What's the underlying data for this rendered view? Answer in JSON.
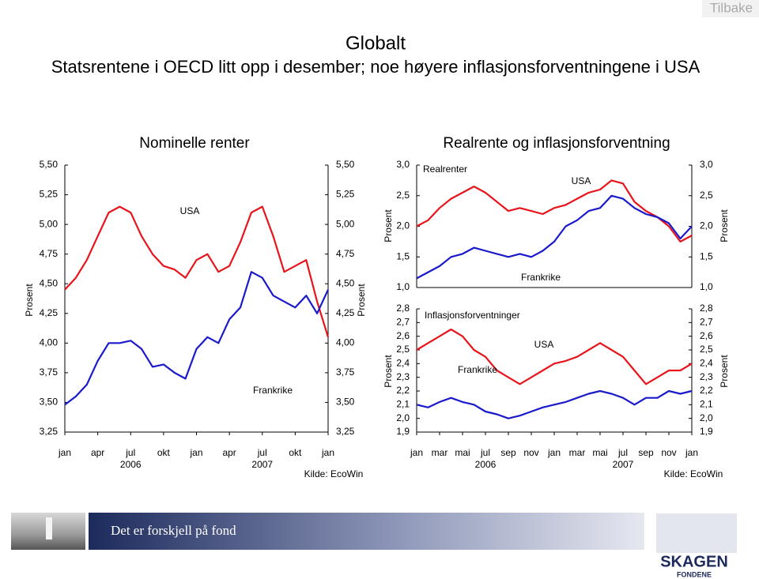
{
  "header": {
    "link": "Tilbake",
    "title": "Globalt",
    "subtitle": "Statsrentene i OECD litt opp i desember; noe høyere inflasjonsforventningene i USA"
  },
  "group_title": "Realrente og inflasjonsforventning",
  "chart_data": [
    {
      "type": "line",
      "title": "Nominelle renter",
      "ylabel": "Prosent",
      "source": "Kilde: EcoWin",
      "x": [
        0,
        1,
        2,
        3,
        4,
        5,
        6,
        7,
        8,
        9,
        10,
        11,
        12,
        13,
        14,
        15,
        16,
        17,
        18,
        19,
        20,
        21,
        22,
        23,
        24
      ],
      "xlim": [
        0,
        24
      ],
      "xticks": [
        {
          "value": 0,
          "label": "jan"
        },
        {
          "value": 3,
          "label": "apr"
        },
        {
          "value": 6,
          "label": "jul"
        },
        {
          "value": 9,
          "label": "okt"
        },
        {
          "value": 12,
          "label": "jan"
        },
        {
          "value": 15,
          "label": "apr"
        },
        {
          "value": 18,
          "label": "jul"
        },
        {
          "value": 21,
          "label": "okt"
        },
        {
          "value": 24,
          "label": "jan"
        }
      ],
      "year_labels": [
        {
          "value": 6,
          "label": "2006"
        },
        {
          "value": 18,
          "label": "2007"
        }
      ],
      "ylim": [
        3.25,
        5.5
      ],
      "yticks": [
        {
          "value": 3.25,
          "label": "3,25"
        },
        {
          "value": 3.5,
          "label": "3,50"
        },
        {
          "value": 3.75,
          "label": "3,75"
        },
        {
          "value": 4,
          "label": "4,00"
        },
        {
          "value": 4.25,
          "label": "4,25"
        },
        {
          "value": 4.5,
          "label": "4,50"
        },
        {
          "value": 4.75,
          "label": "4,75"
        },
        {
          "value": 5,
          "label": "5,00"
        },
        {
          "value": 5.25,
          "label": "5,25"
        },
        {
          "value": 5.5,
          "label": "5,50"
        }
      ],
      "series": [
        {
          "name": "USA",
          "color": "#e8141b",
          "values": [
            4.45,
            4.55,
            4.7,
            4.9,
            5.1,
            5.15,
            5.1,
            4.9,
            4.75,
            4.65,
            4.62,
            4.55,
            4.7,
            4.75,
            4.6,
            4.65,
            4.85,
            5.1,
            5.15,
            4.9,
            4.6,
            4.65,
            4.7,
            4.35,
            4.05
          ]
        },
        {
          "name": "Frankrike",
          "color": "#1a1acc",
          "values": [
            3.48,
            3.55,
            3.65,
            3.85,
            4.0,
            4.0,
            4.02,
            3.95,
            3.8,
            3.82,
            3.75,
            3.7,
            3.95,
            4.05,
            4.0,
            4.2,
            4.3,
            4.6,
            4.55,
            4.4,
            4.35,
            4.3,
            4.4,
            4.25,
            4.45
          ]
        }
      ]
    },
    {
      "type": "line",
      "title": "Realrenter",
      "ylabel": "Prosent",
      "x": [
        0,
        1,
        2,
        3,
        4,
        5,
        6,
        7,
        8,
        9,
        10,
        11,
        12,
        13,
        14,
        15,
        16,
        17,
        18,
        19,
        20,
        21,
        22,
        23,
        24
      ],
      "xlim": [
        0,
        24
      ],
      "ylim": [
        1.0,
        3.0
      ],
      "yticks": [
        {
          "value": 1,
          "label": "1,0"
        },
        {
          "value": 1.5,
          "label": "1,5"
        },
        {
          "value": 2,
          "label": "2,0"
        },
        {
          "value": 2.5,
          "label": "2,5"
        },
        {
          "value": 3,
          "label": "3,0"
        }
      ],
      "series": [
        {
          "name": "USA",
          "color": "#e8141b",
          "values": [
            2.0,
            2.1,
            2.3,
            2.45,
            2.55,
            2.65,
            2.55,
            2.4,
            2.25,
            2.3,
            2.25,
            2.2,
            2.3,
            2.35,
            2.45,
            2.55,
            2.6,
            2.75,
            2.7,
            2.4,
            2.25,
            2.15,
            2.0,
            1.75,
            1.85
          ]
        },
        {
          "name": "Frankrike",
          "color": "#1a1acc",
          "values": [
            1.15,
            1.25,
            1.35,
            1.5,
            1.55,
            1.65,
            1.6,
            1.55,
            1.5,
            1.55,
            1.5,
            1.6,
            1.75,
            2.0,
            2.1,
            2.25,
            2.3,
            2.5,
            2.45,
            2.3,
            2.2,
            2.15,
            2.05,
            1.8,
            2.0
          ]
        }
      ]
    },
    {
      "type": "line",
      "title": "Inflasjonsforventninger",
      "ylabel": "Prosent",
      "source": "Kilde: EcoWin",
      "x": [
        0,
        1,
        2,
        3,
        4,
        5,
        6,
        7,
        8,
        9,
        10,
        11,
        12,
        13,
        14,
        15,
        16,
        17,
        18,
        19,
        20,
        21,
        22,
        23,
        24
      ],
      "xlim": [
        0,
        24
      ],
      "xticks": [
        {
          "value": 0,
          "label": "jan"
        },
        {
          "value": 2,
          "label": "mar"
        },
        {
          "value": 4,
          "label": "mai"
        },
        {
          "value": 6,
          "label": "jul"
        },
        {
          "value": 8,
          "label": "sep"
        },
        {
          "value": 10,
          "label": "nov"
        },
        {
          "value": 12,
          "label": "jan"
        },
        {
          "value": 14,
          "label": "mar"
        },
        {
          "value": 16,
          "label": "mai"
        },
        {
          "value": 18,
          "label": "jul"
        },
        {
          "value": 20,
          "label": "sep"
        },
        {
          "value": 22,
          "label": "nov"
        },
        {
          "value": 24,
          "label": "jan"
        }
      ],
      "year_labels": [
        {
          "value": 6,
          "label": "2006"
        },
        {
          "value": 18,
          "label": "2007"
        }
      ],
      "ylim": [
        1.9,
        2.8
      ],
      "yticks": [
        {
          "value": 1.9,
          "label": "1,9"
        },
        {
          "value": 2.0,
          "label": "2,0"
        },
        {
          "value": 2.1,
          "label": "2,1"
        },
        {
          "value": 2.2,
          "label": "2,2"
        },
        {
          "value": 2.3,
          "label": "2,3"
        },
        {
          "value": 2.4,
          "label": "2,4"
        },
        {
          "value": 2.5,
          "label": "2,5"
        },
        {
          "value": 2.6,
          "label": "2,6"
        },
        {
          "value": 2.7,
          "label": "2,7"
        },
        {
          "value": 2.8,
          "label": "2,8"
        }
      ],
      "series": [
        {
          "name": "USA",
          "color": "#e8141b",
          "values": [
            2.5,
            2.55,
            2.6,
            2.65,
            2.6,
            2.5,
            2.45,
            2.35,
            2.3,
            2.25,
            2.3,
            2.35,
            2.4,
            2.42,
            2.45,
            2.5,
            2.55,
            2.5,
            2.45,
            2.35,
            2.25,
            2.3,
            2.35,
            2.35,
            2.4
          ]
        },
        {
          "name": "Frankrike",
          "color": "#1a1acc",
          "values": [
            2.1,
            2.08,
            2.12,
            2.15,
            2.12,
            2.1,
            2.05,
            2.03,
            2.0,
            2.02,
            2.05,
            2.08,
            2.1,
            2.12,
            2.15,
            2.18,
            2.2,
            2.18,
            2.15,
            2.1,
            2.15,
            2.15,
            2.2,
            2.18,
            2.2
          ]
        }
      ]
    }
  ],
  "footer": {
    "slogan": "Det er forskjell på fond",
    "brand": "SKAGEN",
    "brand_sub": "FONDENE"
  }
}
